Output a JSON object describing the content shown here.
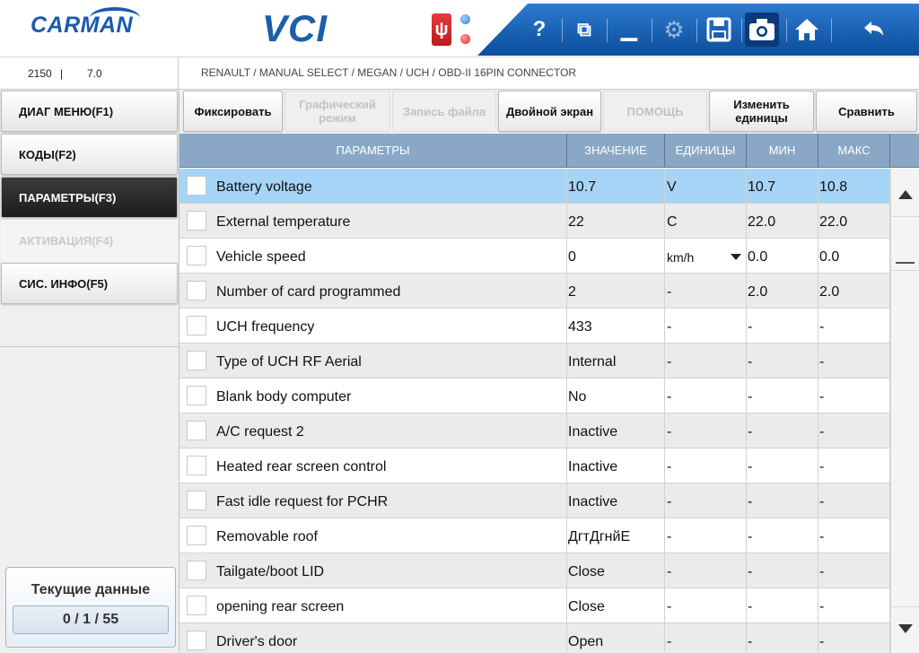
{
  "header": {
    "logo": "CARMAN",
    "product": "VCI",
    "usb_icon": "usb-icon",
    "toolbar": [
      {
        "name": "help-icon",
        "glyph": "?"
      },
      {
        "name": "window-icon",
        "glyph": "⧉"
      },
      {
        "name": "minimize-icon",
        "glyph": "▁"
      },
      {
        "name": "settings-icon",
        "glyph": "⚙"
      },
      {
        "name": "save-icon",
        "glyph": "💾"
      },
      {
        "name": "camera-icon",
        "glyph": "📷"
      },
      {
        "name": "home-icon",
        "glyph": "⌂"
      },
      {
        "name": "back-icon",
        "glyph": "↶"
      }
    ]
  },
  "infobar": {
    "code": "2150",
    "separator": "|",
    "version": "7.0",
    "path": "RENAULT / MANUAL SELECT / MEGAN / UCH / OBD-II 16PIN CONNECTOR"
  },
  "sidebar": {
    "items": [
      {
        "label": "ДИАГ МЕНЮ(F1)",
        "state": "normal"
      },
      {
        "label": "КОДЫ(F2)",
        "state": "normal"
      },
      {
        "label": "ПАРАМЕТРЫ(F3)",
        "state": "active"
      },
      {
        "label": "АКТИВАЦИЯ(F4)",
        "state": "disabled"
      },
      {
        "label": "СИС. ИНФО(F5)",
        "state": "normal"
      }
    ],
    "current_title": "Текущие данные",
    "current_count": "0 / 1 / 55"
  },
  "actions": [
    {
      "label": "Фиксировать",
      "enabled": true
    },
    {
      "label": "Графический режим",
      "enabled": false
    },
    {
      "label": "Запись файла",
      "enabled": false
    },
    {
      "label": "Двойной экран",
      "enabled": true
    },
    {
      "label": "ПОМОЩЬ",
      "enabled": false
    },
    {
      "label": "Изменить единицы",
      "enabled": true
    },
    {
      "label": "Сравнить",
      "enabled": true
    }
  ],
  "table": {
    "columns": [
      "ПАРАМЕТРЫ",
      "ЗНАЧЕНИЕ",
      "ЕДИНИЦЫ",
      "МИН",
      "МАКС"
    ],
    "rows": [
      {
        "name": "Battery voltage",
        "value": "10.7",
        "unit": "V",
        "min": "10.7",
        "max": "10.8",
        "selected": true
      },
      {
        "name": "External temperature",
        "value": "22",
        "unit": "C",
        "min": "22.0",
        "max": "22.0"
      },
      {
        "name": "Vehicle speed",
        "value": "0",
        "unit": "km/h",
        "min": "0.0",
        "max": "0.0",
        "dropdown": true
      },
      {
        "name": "Number of card programmed",
        "value": "2",
        "unit": "-",
        "min": "2.0",
        "max": "2.0"
      },
      {
        "name": "UCH frequency",
        "value": "433",
        "unit": "-",
        "min": "-",
        "max": "-"
      },
      {
        "name": "Type of UCH RF Aerial",
        "value": "Internal",
        "unit": "-",
        "min": "-",
        "max": "-"
      },
      {
        "name": "Blank body computer",
        "value": "No",
        "unit": "-",
        "min": "-",
        "max": "-"
      },
      {
        "name": "A/C request 2",
        "value": "Inactive",
        "unit": "-",
        "min": "-",
        "max": "-"
      },
      {
        "name": "Heated rear screen control",
        "value": "Inactive",
        "unit": "-",
        "min": "-",
        "max": "-"
      },
      {
        "name": "Fast idle request for PCHR",
        "value": "Inactive",
        "unit": "-",
        "min": "-",
        "max": "-"
      },
      {
        "name": "Removable roof",
        "value": "ДгтДгнйЕ",
        "unit": "-",
        "min": "-",
        "max": "-"
      },
      {
        "name": "Tailgate/boot LID",
        "value": "Close",
        "unit": "-",
        "min": "-",
        "max": "-"
      },
      {
        "name": "opening rear screen",
        "value": "Close",
        "unit": "-",
        "min": "-",
        "max": "-"
      },
      {
        "name": "Driver's door",
        "value": "Open",
        "unit": "-",
        "min": "-",
        "max": "-"
      }
    ]
  }
}
